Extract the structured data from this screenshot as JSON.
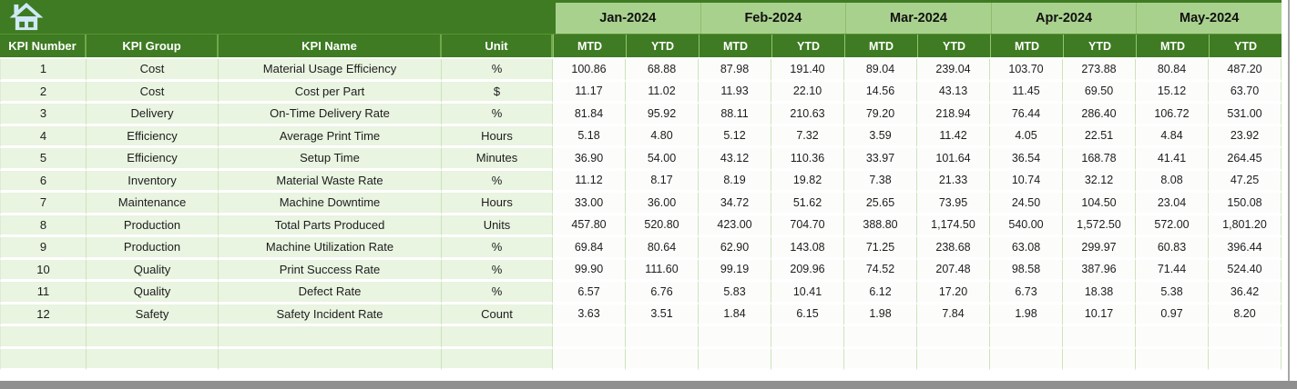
{
  "header": {
    "months": [
      "Jan-2024",
      "Feb-2024",
      "Mar-2024",
      "Apr-2024",
      "May-2024"
    ],
    "period_labels": {
      "mtd": "MTD",
      "ytd": "YTD"
    },
    "left_columns": [
      "KPI Number",
      "KPI Group",
      "KPI Name",
      "Unit"
    ]
  },
  "icons": {
    "home": "home-icon"
  },
  "colors": {
    "header_green": "#3E7B22",
    "month_band_green": "#A9D18E",
    "left_cell_green": "#E9F4E1",
    "grid_border_green": "#CBE3BA",
    "home_icon_blue": "#CFE9F7",
    "window_edge_gray": "#8F8F8F"
  },
  "empty_row_count": 2,
  "rows": [
    {
      "kpi_number": "1",
      "kpi_group": "Cost",
      "kpi_name": "Material Usage Efficiency",
      "unit": "%",
      "values": [
        "100.86",
        "68.88",
        "87.98",
        "191.40",
        "89.04",
        "239.04",
        "103.70",
        "273.88",
        "80.84",
        "487.20"
      ]
    },
    {
      "kpi_number": "2",
      "kpi_group": "Cost",
      "kpi_name": "Cost per Part",
      "unit": "$",
      "values": [
        "11.17",
        "11.02",
        "11.93",
        "22.10",
        "14.56",
        "43.13",
        "11.45",
        "69.50",
        "15.12",
        "63.70"
      ]
    },
    {
      "kpi_number": "3",
      "kpi_group": "Delivery",
      "kpi_name": "On-Time Delivery Rate",
      "unit": "%",
      "values": [
        "81.84",
        "95.92",
        "88.11",
        "210.63",
        "79.20",
        "218.94",
        "76.44",
        "286.40",
        "106.72",
        "531.00"
      ]
    },
    {
      "kpi_number": "4",
      "kpi_group": "Efficiency",
      "kpi_name": "Average Print Time",
      "unit": "Hours",
      "values": [
        "5.18",
        "4.80",
        "5.12",
        "7.32",
        "3.59",
        "11.42",
        "4.05",
        "22.51",
        "4.84",
        "23.92"
      ]
    },
    {
      "kpi_number": "5",
      "kpi_group": "Efficiency",
      "kpi_name": "Setup Time",
      "unit": "Minutes",
      "values": [
        "36.90",
        "54.00",
        "43.12",
        "110.36",
        "33.97",
        "101.64",
        "36.54",
        "168.78",
        "41.41",
        "264.45"
      ]
    },
    {
      "kpi_number": "6",
      "kpi_group": "Inventory",
      "kpi_name": "Material Waste Rate",
      "unit": "%",
      "values": [
        "11.12",
        "8.17",
        "8.19",
        "19.82",
        "7.38",
        "21.33",
        "10.74",
        "32.12",
        "8.08",
        "47.25"
      ]
    },
    {
      "kpi_number": "7",
      "kpi_group": "Maintenance",
      "kpi_name": "Machine Downtime",
      "unit": "Hours",
      "values": [
        "33.00",
        "36.00",
        "34.72",
        "51.62",
        "25.65",
        "73.95",
        "24.50",
        "104.50",
        "23.04",
        "150.08"
      ]
    },
    {
      "kpi_number": "8",
      "kpi_group": "Production",
      "kpi_name": "Total Parts Produced",
      "unit": "Units",
      "values": [
        "457.80",
        "520.80",
        "423.00",
        "704.70",
        "388.80",
        "1,174.50",
        "540.00",
        "1,572.50",
        "572.00",
        "1,801.20"
      ]
    },
    {
      "kpi_number": "9",
      "kpi_group": "Production",
      "kpi_name": "Machine Utilization Rate",
      "unit": "%",
      "values": [
        "69.84",
        "80.64",
        "62.90",
        "143.08",
        "71.25",
        "238.68",
        "63.08",
        "299.97",
        "60.83",
        "396.44"
      ]
    },
    {
      "kpi_number": "10",
      "kpi_group": "Quality",
      "kpi_name": "Print Success Rate",
      "unit": "%",
      "values": [
        "99.90",
        "111.60",
        "99.19",
        "209.96",
        "74.52",
        "207.48",
        "98.58",
        "387.96",
        "71.44",
        "524.40"
      ]
    },
    {
      "kpi_number": "11",
      "kpi_group": "Quality",
      "kpi_name": "Defect Rate",
      "unit": "%",
      "values": [
        "6.57",
        "6.76",
        "5.83",
        "10.41",
        "6.12",
        "17.20",
        "6.73",
        "18.38",
        "5.38",
        "36.42"
      ]
    },
    {
      "kpi_number": "12",
      "kpi_group": "Safety",
      "kpi_name": "Safety Incident Rate",
      "unit": "Count",
      "values": [
        "3.63",
        "3.51",
        "1.84",
        "6.15",
        "1.98",
        "7.84",
        "1.98",
        "10.17",
        "0.97",
        "8.20"
      ]
    }
  ]
}
